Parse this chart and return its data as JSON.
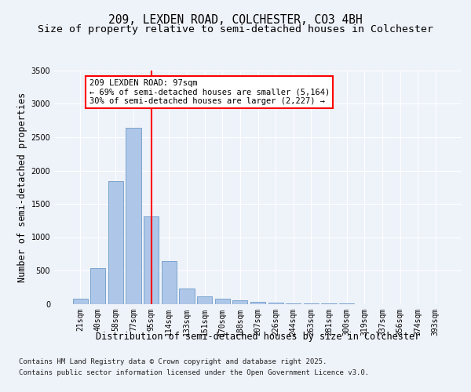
{
  "title_line1": "209, LEXDEN ROAD, COLCHESTER, CO3 4BH",
  "title_line2": "Size of property relative to semi-detached houses in Colchester",
  "xlabel": "Distribution of semi-detached houses by size in Colchester",
  "ylabel": "Number of semi-detached properties",
  "categories": [
    "21sqm",
    "40sqm",
    "58sqm",
    "77sqm",
    "95sqm",
    "114sqm",
    "133sqm",
    "151sqm",
    "170sqm",
    "188sqm",
    "207sqm",
    "226sqm",
    "244sqm",
    "263sqm",
    "281sqm",
    "300sqm",
    "319sqm",
    "337sqm",
    "356sqm",
    "374sqm",
    "393sqm"
  ],
  "values": [
    75,
    530,
    1840,
    2640,
    1310,
    640,
    230,
    110,
    80,
    55,
    30,
    15,
    8,
    3,
    2,
    1,
    0,
    0,
    0,
    0,
    0
  ],
  "bar_color": "#aec6e8",
  "bar_edge_color": "#5a8fc0",
  "vline_x_index": 4,
  "vline_color": "red",
  "annotation_text": "209 LEXDEN ROAD: 97sqm\n← 69% of semi-detached houses are smaller (5,164)\n30% of semi-detached houses are larger (2,227) →",
  "annotation_box_color": "white",
  "annotation_box_edge_color": "red",
  "ylim": [
    0,
    3500
  ],
  "yticks": [
    0,
    500,
    1000,
    1500,
    2000,
    2500,
    3000,
    3500
  ],
  "footer_line1": "Contains HM Land Registry data © Crown copyright and database right 2025.",
  "footer_line2": "Contains public sector information licensed under the Open Government Licence v3.0.",
  "bg_color": "#eef2f9",
  "plot_bg_color": "#eef2f9",
  "grid_color": "white",
  "title_fontsize": 10.5,
  "subtitle_fontsize": 9.5,
  "axis_label_fontsize": 8.5,
  "tick_fontsize": 7,
  "annotation_fontsize": 7.5,
  "footer_fontsize": 6.5
}
